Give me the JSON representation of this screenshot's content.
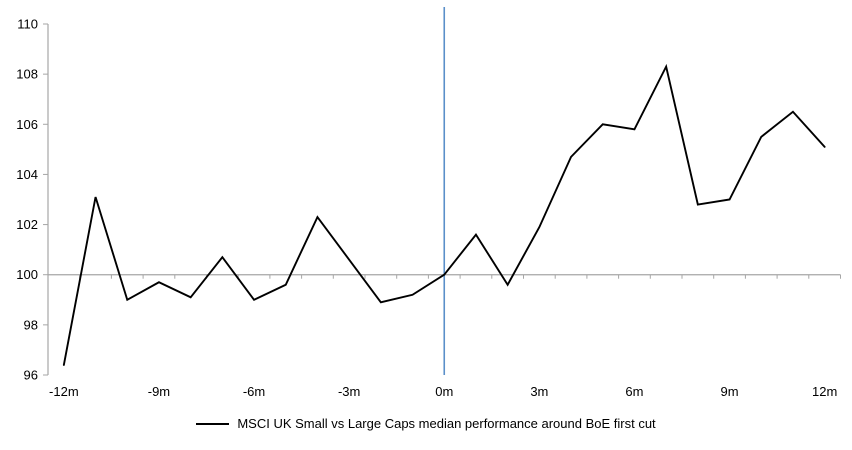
{
  "chart_data": {
    "type": "line",
    "title": "",
    "xlabel": "",
    "ylabel": "",
    "x": [
      -12,
      -11,
      -10,
      -9,
      -8,
      -7,
      -6,
      -5,
      -4,
      -3,
      -2,
      -1,
      0,
      1,
      2,
      3,
      4,
      5,
      6,
      7,
      8,
      9,
      10,
      11,
      12
    ],
    "series": [
      {
        "name": "MSCI UK Small vs Large Caps median performance around BoE first cut",
        "color": "#000000",
        "values": [
          96.4,
          103.1,
          99.0,
          99.7,
          99.1,
          100.7,
          99.0,
          99.6,
          102.3,
          100.6,
          98.9,
          99.2,
          100.0,
          101.6,
          99.6,
          101.9,
          104.7,
          106.0,
          105.8,
          108.3,
          102.8,
          103.0,
          105.5,
          106.5,
          105.1
        ]
      }
    ],
    "xlim": [
      -12.5,
      12.5
    ],
    "ylim": [
      96,
      110
    ],
    "y_ticks": [
      96,
      98,
      100,
      102,
      104,
      106,
      108,
      110
    ],
    "x_ticks": [
      {
        "value": -12,
        "label": "-12m"
      },
      {
        "value": -9,
        "label": "-9m"
      },
      {
        "value": -6,
        "label": "-6m"
      },
      {
        "value": -3,
        "label": "-3m"
      },
      {
        "value": 0,
        "label": "0m"
      },
      {
        "value": 3,
        "label": "3m"
      },
      {
        "value": 6,
        "label": "6m"
      },
      {
        "value": 9,
        "label": "9m"
      },
      {
        "value": 12,
        "label": "12m"
      }
    ],
    "x_minor_tick_step": 1,
    "baseline_value": 100,
    "event_line": {
      "x": 0,
      "color": "#5b8fc9"
    },
    "axis_color": "#a6a6a6",
    "grid": false,
    "legend_position": "bottom"
  }
}
